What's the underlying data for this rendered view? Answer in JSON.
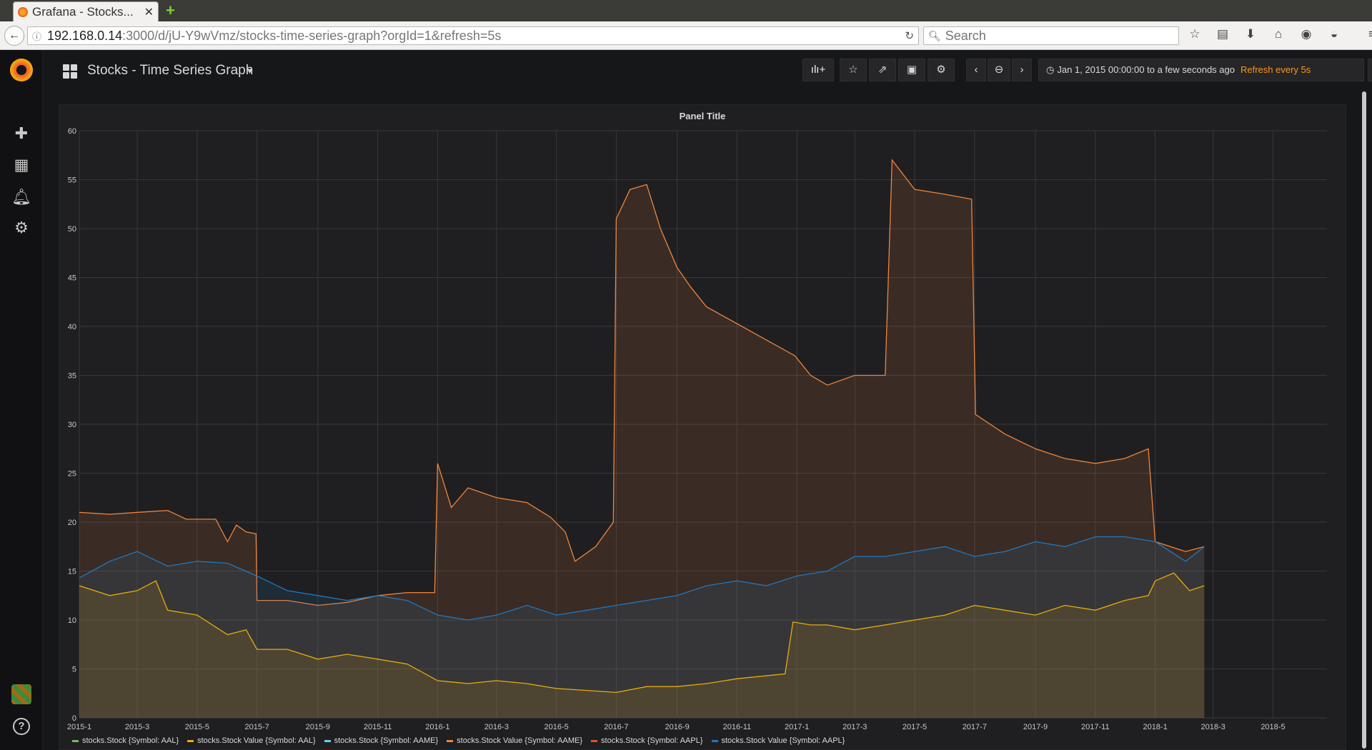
{
  "browser": {
    "tab_title": "Grafana - Stocks...",
    "url_host": "192.168.0.14",
    "url_path": ":3000/d/jU-Y9wVmz/stocks-time-series-graph?orgId=1&refresh=5s",
    "search_placeholder": "Search"
  },
  "dashboard": {
    "title": "Stocks - Time Series Graph",
    "time_range": "Jan 1, 2015 00:00:00 to a few seconds ago",
    "refresh": "Refresh every 5s"
  },
  "panel": {
    "title": "Panel Title"
  },
  "colors": {
    "orange": "#ef843c",
    "yellow": "#e5ac0e",
    "blue": "#1f78c1",
    "green": "#7eb26d",
    "lightblue": "#6ed0e0",
    "red": "#e24d42"
  },
  "chart_data": {
    "type": "line",
    "title": "Panel Title",
    "ylim": [
      0,
      60
    ],
    "yticks": [
      0,
      5,
      10,
      15,
      20,
      25,
      30,
      35,
      40,
      45,
      50,
      55,
      60
    ],
    "xlim": [
      "2015-01-01",
      "2018-06-25"
    ],
    "xticks": [
      "2015-1",
      "2015-3",
      "2015-5",
      "2015-7",
      "2015-9",
      "2015-11",
      "2016-1",
      "2016-3",
      "2016-5",
      "2016-7",
      "2016-9",
      "2016-11",
      "2017-1",
      "2017-3",
      "2017-5",
      "2017-7",
      "2017-9",
      "2017-11",
      "2018-1",
      "2018-3",
      "2018-5"
    ],
    "grid": true,
    "legend": "bottom",
    "fill": true,
    "series": [
      {
        "name": "stocks.Stock Value (Symbol: AAME)",
        "color": "#ef843c",
        "points": [
          [
            "2015-01-01",
            21.0
          ],
          [
            "2015-02-01",
            20.8
          ],
          [
            "2015-03-01",
            21.0
          ],
          [
            "2015-04-01",
            21.2
          ],
          [
            "2015-04-20",
            20.3
          ],
          [
            "2015-05-20",
            20.3
          ],
          [
            "2015-06-01",
            18.0
          ],
          [
            "2015-06-10",
            19.7
          ],
          [
            "2015-06-20",
            19.0
          ],
          [
            "2015-06-30",
            18.8
          ],
          [
            "2015-07-01",
            12.0
          ],
          [
            "2015-08-01",
            12.0
          ],
          [
            "2015-09-01",
            11.5
          ],
          [
            "2015-10-01",
            11.8
          ],
          [
            "2015-11-01",
            12.5
          ],
          [
            "2015-12-01",
            12.8
          ],
          [
            "2015-12-29",
            12.8
          ],
          [
            "2016-01-01",
            26.0
          ],
          [
            "2016-01-15",
            21.5
          ],
          [
            "2016-02-01",
            23.5
          ],
          [
            "2016-03-01",
            22.5
          ],
          [
            "2016-04-01",
            22.0
          ],
          [
            "2016-04-25",
            20.5
          ],
          [
            "2016-05-10",
            19.0
          ],
          [
            "2016-05-20",
            16.0
          ],
          [
            "2016-06-10",
            17.5
          ],
          [
            "2016-06-28",
            20.0
          ],
          [
            "2016-07-01",
            51.0
          ],
          [
            "2016-07-15",
            54.0
          ],
          [
            "2016-08-01",
            54.5
          ],
          [
            "2016-08-15",
            50.0
          ],
          [
            "2016-09-01",
            46.0
          ],
          [
            "2016-09-15",
            44.0
          ],
          [
            "2016-10-01",
            42.0
          ],
          [
            "2016-12-30",
            37.0
          ],
          [
            "2017-01-15",
            35.0
          ],
          [
            "2017-02-01",
            34.0
          ],
          [
            "2017-03-01",
            35.0
          ],
          [
            "2017-04-01",
            35.0
          ],
          [
            "2017-04-08",
            57.0
          ],
          [
            "2017-05-01",
            54.0
          ],
          [
            "2017-06-01",
            53.5
          ],
          [
            "2017-06-28",
            53.0
          ],
          [
            "2017-07-02",
            31.0
          ],
          [
            "2017-08-01",
            29.0
          ],
          [
            "2017-09-01",
            27.5
          ],
          [
            "2017-10-01",
            26.5
          ],
          [
            "2017-11-01",
            26.0
          ],
          [
            "2017-12-01",
            26.5
          ],
          [
            "2017-12-25",
            27.5
          ],
          [
            "2018-01-01",
            18.0
          ],
          [
            "2018-02-01",
            17.0
          ],
          [
            "2018-02-20",
            17.5
          ]
        ]
      },
      {
        "name": "stocks.Stock Value (Symbol: AAPL)",
        "color": "#1f78c1",
        "points": [
          [
            "2015-01-01",
            14.3
          ],
          [
            "2015-02-01",
            16.0
          ],
          [
            "2015-03-01",
            17.0
          ],
          [
            "2015-04-01",
            15.5
          ],
          [
            "2015-05-01",
            16.0
          ],
          [
            "2015-06-01",
            15.8
          ],
          [
            "2015-07-01",
            14.5
          ],
          [
            "2015-08-01",
            13.0
          ],
          [
            "2015-09-01",
            12.5
          ],
          [
            "2015-10-01",
            12.0
          ],
          [
            "2015-11-01",
            12.5
          ],
          [
            "2015-12-01",
            12.0
          ],
          [
            "2016-01-01",
            10.5
          ],
          [
            "2016-02-01",
            10.0
          ],
          [
            "2016-03-01",
            10.5
          ],
          [
            "2016-04-01",
            11.5
          ],
          [
            "2016-05-01",
            10.5
          ],
          [
            "2016-06-01",
            11.0
          ],
          [
            "2016-07-01",
            11.5
          ],
          [
            "2016-08-01",
            12.0
          ],
          [
            "2016-09-01",
            12.5
          ],
          [
            "2016-10-01",
            13.5
          ],
          [
            "2016-11-01",
            14.0
          ],
          [
            "2016-12-01",
            13.5
          ],
          [
            "2017-01-01",
            14.5
          ],
          [
            "2017-02-01",
            15.0
          ],
          [
            "2017-03-01",
            16.5
          ],
          [
            "2017-04-01",
            16.5
          ],
          [
            "2017-05-01",
            17.0
          ],
          [
            "2017-06-01",
            17.5
          ],
          [
            "2017-07-01",
            16.5
          ],
          [
            "2017-08-01",
            17.0
          ],
          [
            "2017-09-01",
            18.0
          ],
          [
            "2017-10-01",
            17.5
          ],
          [
            "2017-11-01",
            18.5
          ],
          [
            "2017-12-01",
            18.5
          ],
          [
            "2018-01-01",
            18.0
          ],
          [
            "2018-02-01",
            16.0
          ],
          [
            "2018-02-20",
            17.5
          ]
        ]
      },
      {
        "name": "stocks.Stock Value (Symbol: AAL)",
        "color": "#e5ac0e",
        "points": [
          [
            "2015-01-01",
            13.5
          ],
          [
            "2015-02-01",
            12.5
          ],
          [
            "2015-03-01",
            13.0
          ],
          [
            "2015-03-20",
            14.0
          ],
          [
            "2015-04-01",
            11.0
          ],
          [
            "2015-05-01",
            10.5
          ],
          [
            "2015-06-01",
            8.5
          ],
          [
            "2015-06-20",
            9.0
          ],
          [
            "2015-07-01",
            7.0
          ],
          [
            "2015-08-01",
            7.0
          ],
          [
            "2015-09-01",
            6.0
          ],
          [
            "2015-10-01",
            6.5
          ],
          [
            "2015-11-01",
            6.0
          ],
          [
            "2015-12-01",
            5.5
          ],
          [
            "2016-01-01",
            3.8
          ],
          [
            "2016-02-01",
            3.5
          ],
          [
            "2016-03-01",
            3.8
          ],
          [
            "2016-04-01",
            3.5
          ],
          [
            "2016-05-01",
            3.0
          ],
          [
            "2016-06-01",
            2.8
          ],
          [
            "2016-07-01",
            2.6
          ],
          [
            "2016-08-01",
            3.2
          ],
          [
            "2016-09-01",
            3.2
          ],
          [
            "2016-10-01",
            3.5
          ],
          [
            "2016-11-01",
            4.0
          ],
          [
            "2016-12-20",
            4.5
          ],
          [
            "2016-12-28",
            9.8
          ],
          [
            "2017-01-15",
            9.5
          ],
          [
            "2017-02-01",
            9.5
          ],
          [
            "2017-03-01",
            9.0
          ],
          [
            "2017-04-01",
            9.5
          ],
          [
            "2017-05-01",
            10.0
          ],
          [
            "2017-06-01",
            10.5
          ],
          [
            "2017-07-01",
            11.5
          ],
          [
            "2017-08-01",
            11.0
          ],
          [
            "2017-09-01",
            10.5
          ],
          [
            "2017-10-01",
            11.5
          ],
          [
            "2017-11-01",
            11.0
          ],
          [
            "2017-12-01",
            12.0
          ],
          [
            "2017-12-25",
            12.5
          ],
          [
            "2018-01-01",
            14.0
          ],
          [
            "2018-01-20",
            14.8
          ],
          [
            "2018-02-05",
            13.0
          ],
          [
            "2018-02-20",
            13.5
          ]
        ]
      },
      {
        "name": "stocks.Stock (Symbol: AAL)",
        "color": "#7eb26d",
        "points": []
      },
      {
        "name": "stocks.Stock (Symbol: AAME)",
        "color": "#6ed0e0",
        "points": []
      },
      {
        "name": "stocks.Stock (Symbol: AAPL)",
        "color": "#e24d42",
        "points": []
      }
    ]
  },
  "legend": [
    {
      "label": "stocks.Stock {Symbol: AAL}",
      "color": "#7eb26d"
    },
    {
      "label": "stocks.Stock Value {Symbol: AAL}",
      "color": "#e5ac0e"
    },
    {
      "label": "stocks.Stock {Symbol: AAME}",
      "color": "#6ed0e0"
    },
    {
      "label": "stocks.Stock Value {Symbol: AAME}",
      "color": "#ef843c"
    },
    {
      "label": "stocks.Stock {Symbol: AAPL}",
      "color": "#e24d42"
    },
    {
      "label": "stocks.Stock Value {Symbol: AAPL}",
      "color": "#1f78c1"
    }
  ]
}
